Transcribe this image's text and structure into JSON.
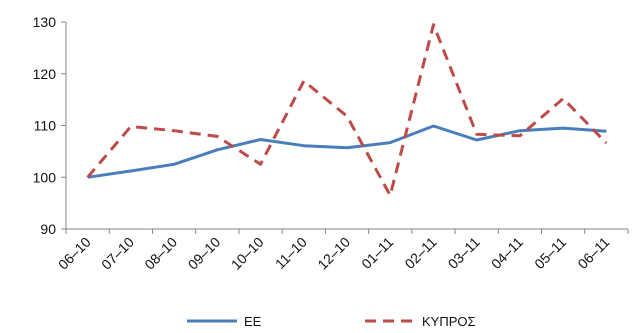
{
  "chart_data": {
    "type": "line",
    "categories": [
      "06–10",
      "07–10",
      "08–10",
      "09–10",
      "10–10",
      "11–10",
      "12–10",
      "01–11",
      "02–11",
      "03–11",
      "04–11",
      "05–11",
      "06–11"
    ],
    "series": [
      {
        "name": "ΕΕ",
        "color": "#4a7ebb",
        "dash": "solid",
        "values": [
          100,
          101.2,
          102.5,
          105.3,
          107.3,
          106.1,
          105.7,
          106.7,
          109.9,
          107.2,
          109.0,
          109.5,
          108.9
        ]
      },
      {
        "name": "ΚΥΠΡΟΣ",
        "color": "#be4b48",
        "dash": "dashed",
        "values": [
          100,
          109.8,
          109.0,
          107.9,
          102.5,
          118.6,
          111.8,
          96.5,
          129.5,
          108.3,
          108.0,
          115.2,
          106.6
        ]
      }
    ],
    "yticks": [
      90,
      100,
      110,
      120,
      130
    ],
    "ylim": [
      90,
      130
    ],
    "grid": false,
    "legend": "bottom"
  }
}
